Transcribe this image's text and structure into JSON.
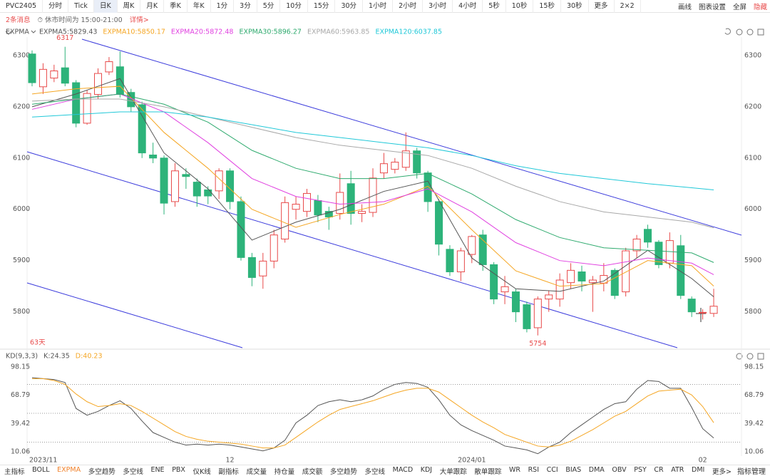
{
  "toolbar": {
    "symbol": "PVC2405",
    "items": [
      "分时",
      "Tick",
      "日K",
      "周K",
      "月K",
      "季K",
      "年K",
      "1分",
      "3分",
      "5分",
      "10分",
      "15分",
      "30分",
      "1小时",
      "2小时",
      "3小时",
      "4小时",
      "5秒",
      "10秒",
      "15秒",
      "30秒",
      "更多",
      "2×2"
    ],
    "active": "日K",
    "tools": [
      "画线",
      "图表设置",
      "全屏",
      "隐藏"
    ]
  },
  "notice": {
    "messages": "2条消息",
    "hours": "休市时间为 15:00-21:00",
    "details": "详情>"
  },
  "chart_data": [
    {
      "type": "candlestick",
      "legend_title": "EXPMA",
      "period_label": "63天",
      "open": [
        6303,
        6239,
        6256,
        6276,
        6247,
        6168,
        6224,
        6268,
        6278,
        6228,
        6204,
        6106,
        6100,
        6015,
        6068,
        6053,
        6038,
        6036,
        6075,
        6015,
        5906,
        5870,
        5899,
        5942,
        6000,
        5996,
        6017,
        5996,
        5992,
        6050,
        5992,
        5994,
        6071,
        6078,
        6082,
        6114,
        6071,
        6015,
        5922,
        5878,
        5912,
        5950,
        5892,
        5839,
        5839,
        5814,
        5769,
        5825,
        5825,
        5857,
        5878,
        5857,
        5856,
        5881,
        5839,
        5919,
        5961,
        5936,
        5895,
        5929,
        5825,
        5798,
        5797
      ],
      "high": [
        6310,
        6285,
        6282,
        6317,
        6252,
        6232,
        6275,
        6297,
        6308,
        6235,
        6210,
        6130,
        6105,
        6090,
        6080,
        6060,
        6045,
        6080,
        6080,
        6025,
        5915,
        5915,
        5960,
        6025,
        6025,
        6040,
        6028,
        6005,
        6070,
        6075,
        6010,
        6080,
        6110,
        6100,
        6150,
        6120,
        6075,
        6020,
        5930,
        5925,
        5950,
        5960,
        5897,
        5870,
        5845,
        5820,
        5830,
        5842,
        5875,
        5895,
        5890,
        5870,
        5895,
        5885,
        5925,
        5950,
        5970,
        5940,
        5955,
        5950,
        5830,
        5805,
        5845
      ],
      "low": [
        6240,
        6225,
        6248,
        6240,
        6160,
        6165,
        6215,
        6262,
        6218,
        6190,
        6100,
        6090,
        5990,
        6005,
        6040,
        6005,
        6010,
        6020,
        6000,
        5900,
        5850,
        5845,
        5885,
        5935,
        5980,
        5985,
        5975,
        5960,
        5980,
        5970,
        5975,
        5985,
        6060,
        6070,
        6075,
        6060,
        5995,
        5910,
        5870,
        5860,
        5895,
        5880,
        5815,
        5815,
        5780,
        5760,
        5754,
        5800,
        5810,
        5845,
        5840,
        5800,
        5840,
        5825,
        5830,
        5905,
        5925,
        5885,
        5885,
        5825,
        5790,
        5785,
        5790
      ],
      "close": [
        6247,
        6273,
        6270,
        6246,
        6168,
        6226,
        6265,
        6288,
        6224,
        6200,
        6110,
        6100,
        6012,
        6075,
        6064,
        6026,
        6026,
        6075,
        6015,
        5906,
        5867,
        5899,
        5950,
        6013,
        6010,
        6031,
        5989,
        5985,
        6033,
        5992,
        5996,
        6061,
        6089,
        6092,
        6114,
        6071,
        6015,
        5932,
        5878,
        5919,
        5947,
        5892,
        5825,
        5849,
        5800,
        5767,
        5825,
        5833,
        5862,
        5881,
        5860,
        5862,
        5871,
        5832,
        5919,
        5942,
        5936,
        5892,
        5939,
        5832,
        5800,
        5799,
        5811
      ],
      "up_color": "#e84a4a",
      "down_color": "#2db37a",
      "ylim": [
        5730,
        6336
      ],
      "yticks": [
        5800,
        5900,
        6000,
        6100,
        6200,
        6300
      ],
      "annotations": [
        {
          "x": 3,
          "y": 6317
        },
        {
          "x": 46,
          "y": 5754
        }
      ],
      "series": [
        {
          "name": "EXPMA5:5829.43",
          "color": "#555555",
          "x": [
            0,
            4,
            8,
            12,
            16,
            20,
            24,
            28,
            32,
            36,
            40,
            44,
            48,
            52,
            56,
            60,
            62
          ],
          "values": [
            6200,
            6225,
            6255,
            6110,
            6040,
            5940,
            5975,
            6000,
            6035,
            6055,
            5905,
            5845,
            5840,
            5860,
            5920,
            5865,
            5829.43
          ]
        },
        {
          "name": "EXPMA10:5850.17",
          "color": "#f5a623",
          "x": [
            0,
            4,
            8,
            12,
            16,
            20,
            24,
            28,
            32,
            36,
            40,
            44,
            48,
            52,
            56,
            60,
            62
          ],
          "values": [
            6225,
            6235,
            6240,
            6150,
            6080,
            6000,
            5965,
            5990,
            6010,
            6045,
            5960,
            5880,
            5850,
            5855,
            5900,
            5890,
            5850.17
          ]
        },
        {
          "name": "EXPMA20:5872.48",
          "color": "#e040e0",
          "x": [
            0,
            4,
            8,
            12,
            16,
            20,
            24,
            28,
            32,
            36,
            40,
            44,
            48,
            52,
            56,
            60,
            62
          ],
          "values": [
            6195,
            6215,
            6225,
            6190,
            6130,
            6060,
            6025,
            6010,
            6015,
            6040,
            5995,
            5935,
            5900,
            5890,
            5905,
            5895,
            5872.48
          ]
        },
        {
          "name": "EXPMA30:5896.27",
          "color": "#2eaa6e",
          "x": [
            0,
            4,
            8,
            12,
            16,
            20,
            24,
            28,
            32,
            36,
            40,
            44,
            48,
            52,
            56,
            60,
            62
          ],
          "values": [
            6205,
            6215,
            6225,
            6205,
            6170,
            6115,
            6080,
            6060,
            6060,
            6070,
            6030,
            5980,
            5945,
            5925,
            5920,
            5915,
            5896.27
          ]
        },
        {
          "name": "EXPMA60:5963.85",
          "color": "#a8a8a8",
          "x": [
            0,
            4,
            8,
            12,
            16,
            20,
            24,
            28,
            32,
            36,
            40,
            44,
            48,
            52,
            56,
            60,
            62
          ],
          "values": [
            6211,
            6215,
            6215,
            6200,
            6180,
            6160,
            6140,
            6125,
            6115,
            6105,
            6080,
            6045,
            6015,
            5995,
            5985,
            5975,
            5963.85
          ]
        },
        {
          "name": "EXPMA120:6037.85",
          "color": "#20c8d8",
          "x": [
            0,
            4,
            8,
            12,
            16,
            20,
            24,
            28,
            32,
            36,
            40,
            44,
            48,
            52,
            56,
            60,
            62
          ],
          "values": [
            6180,
            6185,
            6190,
            6190,
            6180,
            6165,
            6150,
            6140,
            6130,
            6120,
            6105,
            6085,
            6070,
            6060,
            6050,
            6042,
            6037.85
          ]
        }
      ]
    },
    {
      "type": "line",
      "legend_title": "KD(9,3,3)",
      "series": [
        {
          "name": "K:24.35",
          "color": "#555555",
          "values": [
            87,
            86,
            85,
            82,
            55,
            48,
            52,
            58,
            63,
            55,
            42,
            30,
            25,
            20,
            17,
            18,
            17,
            18,
            17,
            15,
            13,
            11,
            14,
            22,
            40,
            48,
            58,
            62,
            64,
            62,
            64,
            68,
            75,
            80,
            82,
            81,
            77,
            64,
            48,
            38,
            32,
            27,
            22,
            16,
            14,
            12,
            8,
            15,
            20,
            30,
            38,
            46,
            54,
            60,
            62,
            75,
            84,
            83,
            76,
            76,
            56,
            34,
            24.35
          ]
        },
        {
          "name": "D:40.23",
          "color": "#f5a623",
          "values": [
            86,
            86,
            84,
            80,
            70,
            62,
            57,
            58,
            60,
            58,
            52,
            45,
            38,
            31,
            26,
            23,
            21,
            20,
            19,
            18,
            16,
            14,
            14,
            17,
            25,
            33,
            41,
            48,
            54,
            57,
            60,
            63,
            67,
            71,
            74,
            76,
            76,
            72,
            64,
            56,
            48,
            41,
            35,
            28,
            24,
            20,
            16,
            15,
            17,
            21,
            27,
            33,
            40,
            47,
            52,
            60,
            68,
            73,
            74,
            75,
            69,
            57,
            40.23
          ]
        }
      ],
      "ylim": [
        5.6,
        104
      ],
      "yticks": [
        10.06,
        39.42,
        68.79,
        98.15
      ],
      "guides": [
        80,
        50,
        20
      ],
      "xticks": [
        {
          "value": 0,
          "label": "2023/11"
        },
        {
          "value": 18,
          "label": "12"
        },
        {
          "value": 40,
          "label": "2024/01"
        },
        {
          "value": 61,
          "label": "02"
        }
      ]
    }
  ],
  "indicator_tabs": {
    "items": [
      "主指标",
      "BOLL",
      "EXPMA",
      "多空趋势",
      "多空线",
      "ENE",
      "PBX",
      "仪K线",
      "副指标",
      "成交量",
      "持仓量",
      "成交额",
      "多空趋势",
      "多空线",
      "MACD",
      "KDJ",
      "大单跟踪",
      "散单跟踪",
      "WR",
      "RSI",
      "CCI",
      "BIAS",
      "DMA",
      "OBV",
      "PSY",
      "CR",
      "ATR",
      "DMI",
      "更多>"
    ],
    "active": "EXPMA",
    "manage": "指标管理"
  }
}
